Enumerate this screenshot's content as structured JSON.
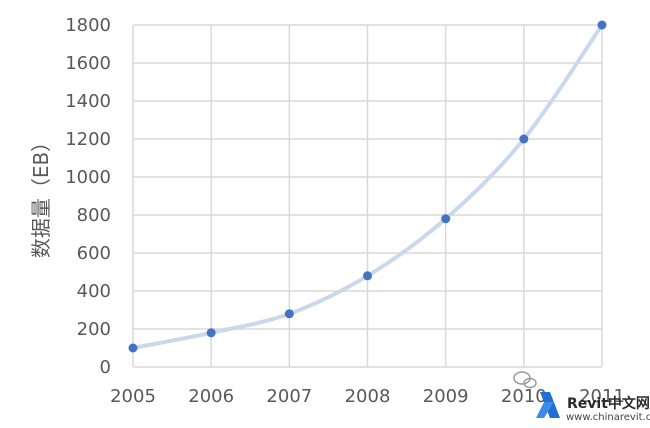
{
  "chart_data": {
    "type": "line",
    "title": "",
    "xlabel": "",
    "ylabel": "数据量（EB）",
    "categories": [
      "2005",
      "2006",
      "2007",
      "2008",
      "2009",
      "2010",
      "2011"
    ],
    "values": [
      100,
      180,
      280,
      480,
      780,
      1200,
      1800
    ],
    "ylim": [
      0,
      1800
    ],
    "yticks": [
      0,
      200,
      400,
      600,
      800,
      1000,
      1200,
      1400,
      1600,
      1800
    ],
    "grid": true,
    "legend": "none",
    "smooth_trend": true,
    "colors": {
      "marker": "#4472c4",
      "trend": "#c9d8eb",
      "grid": "#d9d9d9",
      "text": "#595959"
    }
  },
  "watermark": {
    "brand": "Revit中文网",
    "url": "www.chinarevit.com",
    "icon": "revit-logo-icon",
    "wechat_icon": "wechat-icon"
  }
}
